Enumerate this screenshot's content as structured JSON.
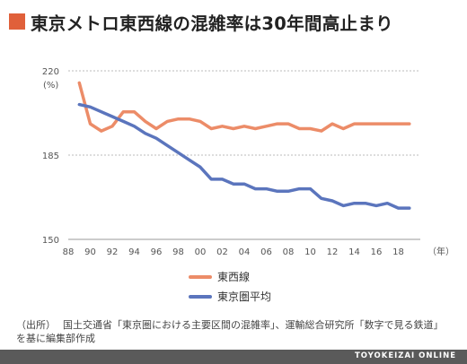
{
  "title": "東京メトロ東西線の混雑率は30年間高止まり",
  "colors": {
    "accent": "#e0603a",
    "series_orange": "#ec8c68",
    "series_blue": "#5b75bd"
  },
  "chart_data": {
    "type": "line",
    "y_unit": "(%)",
    "x_unit": "（年）",
    "ylim": [
      150,
      220
    ],
    "yticks": [
      150,
      185,
      220
    ],
    "xlim": [
      1988,
      2020
    ],
    "xtick_values": [
      1988,
      1990,
      1992,
      1994,
      1996,
      1998,
      2000,
      2002,
      2004,
      2006,
      2008,
      2010,
      2012,
      2014,
      2016,
      2018
    ],
    "xtick_labels": [
      "88",
      "90",
      "92",
      "94",
      "96",
      "98",
      "00",
      "02",
      "04",
      "06",
      "08",
      "10",
      "12",
      "14",
      "16",
      "18"
    ],
    "grid": "horizontal-dashed",
    "legend_position": "bottom",
    "series": [
      {
        "name": "東西線",
        "color": "#ec8c68",
        "x": [
          1989,
          1990,
          1991,
          1992,
          1993,
          1994,
          1995,
          1996,
          1997,
          1998,
          1999,
          2000,
          2001,
          2002,
          2003,
          2004,
          2005,
          2006,
          2007,
          2008,
          2009,
          2010,
          2011,
          2012,
          2013,
          2014,
          2015,
          2016,
          2017,
          2018,
          2019
        ],
        "values": [
          215,
          198,
          195,
          197,
          203,
          203,
          199,
          196,
          199,
          200,
          200,
          199,
          196,
          197,
          196,
          197,
          196,
          197,
          198,
          198,
          196,
          196,
          195,
          198,
          196,
          198,
          198,
          198,
          198,
          198,
          198
        ]
      },
      {
        "name": "東京圏平均",
        "color": "#5b75bd",
        "x": [
          1989,
          1990,
          1991,
          1992,
          1993,
          1994,
          1995,
          1996,
          1997,
          1998,
          1999,
          2000,
          2001,
          2002,
          2003,
          2004,
          2005,
          2006,
          2007,
          2008,
          2009,
          2010,
          2011,
          2012,
          2013,
          2014,
          2015,
          2016,
          2017,
          2018,
          2019
        ],
        "values": [
          206,
          205,
          203,
          201,
          199,
          197,
          194,
          192,
          189,
          186,
          183,
          180,
          175,
          175,
          173,
          173,
          171,
          171,
          170,
          170,
          171,
          171,
          167,
          166,
          164,
          165,
          165,
          164,
          165,
          163,
          163
        ]
      }
    ]
  },
  "source": {
    "label": "（出所）",
    "text": "国土交通省「東京圏における主要区間の混雑率」、運輸総合研究所「数字で見る鉄道」を基に編集部作成"
  },
  "footer": {
    "brand": "TOYOKEIZAI ONLINE"
  }
}
